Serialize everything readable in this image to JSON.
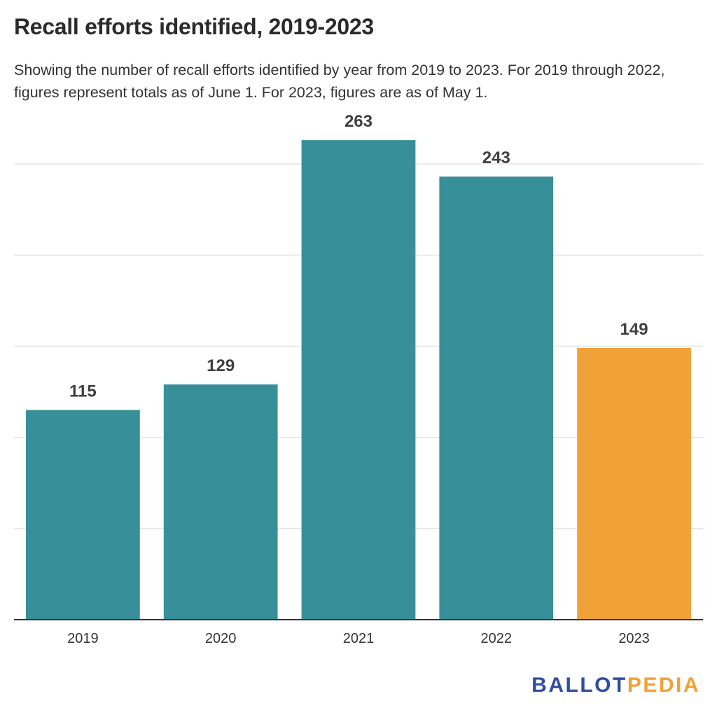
{
  "title": "Recall efforts identified, 2019-2023",
  "subtitle": "Showing the number of recall efforts identified by year from 2019 to 2023. For 2019 through 2022, figures represent totals as of June 1. For 2023, figures are as of May 1.",
  "logo": {
    "part1": "BALLOT",
    "part2": "PEDIA",
    "color1": "#2f4d9e",
    "color2": "#f0a238"
  },
  "chart_data": {
    "type": "bar",
    "categories": [
      "2019",
      "2020",
      "2021",
      "2022",
      "2023"
    ],
    "values": [
      115,
      129,
      263,
      243,
      149
    ],
    "bar_colors": [
      "#368f99",
      "#368f99",
      "#368f99",
      "#368f99",
      "#f0a238"
    ],
    "ylim": [
      0,
      250
    ],
    "gridlines": [
      50,
      100,
      150,
      200,
      250
    ],
    "grid": true,
    "data_labels": true
  }
}
